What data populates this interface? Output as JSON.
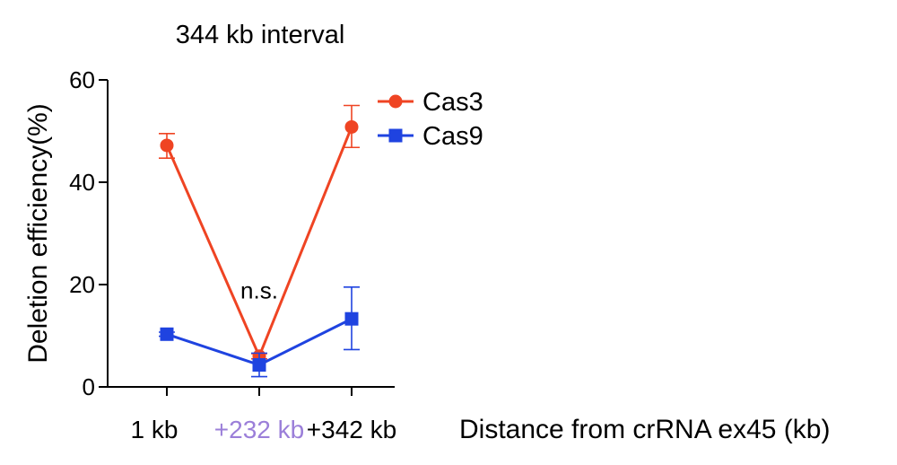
{
  "chart_data": {
    "type": "line",
    "title": "344 kb interval",
    "xlabel": "Distance from crRNA ex45 (kb)",
    "ylabel": "Deletion efficiency(%)",
    "categories": [
      "1 kb",
      "+232 kb",
      "+342 kb"
    ],
    "category_colors": [
      "#000000",
      "#9b7fd9",
      "#000000"
    ],
    "ylim": [
      0,
      60
    ],
    "yticks": [
      0,
      20,
      40,
      60
    ],
    "legend_position": "top-right",
    "annotation": {
      "text": "n.s.",
      "category_index": 1,
      "y": 19
    },
    "series": [
      {
        "name": "Cas3",
        "color": "#ef4423",
        "marker": "circle",
        "values": [
          47.2,
          6.0,
          50.8
        ],
        "err_low": [
          2.5,
          0.5,
          4.0
        ],
        "err_high": [
          2.3,
          0.5,
          4.2
        ]
      },
      {
        "name": "Cas9",
        "color": "#1f43e0",
        "marker": "square",
        "values": [
          10.3,
          4.3,
          13.3
        ],
        "err_low": [
          0.4,
          2.3,
          6.0
        ],
        "err_high": [
          0.4,
          2.3,
          6.2
        ]
      }
    ]
  }
}
